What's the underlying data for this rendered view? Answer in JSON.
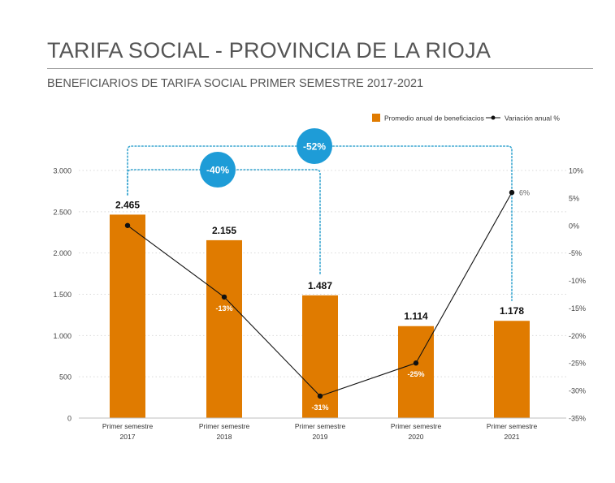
{
  "header": {
    "title": "TARIFA SOCIAL - PROVINCIA DE LA RIOJA",
    "subtitle": "BENEFICIARIOS DE TARIFA SOCIAL PRIMER SEMESTRE 2017-2021"
  },
  "colors": {
    "bar": "#E07B00",
    "line": "#111111",
    "bracket": "#3AA6D0",
    "badge": "#1E9CD7",
    "grid": "#d9d9d9",
    "text": "#555555"
  },
  "chart_data": {
    "type": "bar",
    "categories": [
      "Primer semestre 2017",
      "Primer semestre 2018",
      "Primer semestre 2019",
      "Primer semestre 2020",
      "Primer semestre 2021"
    ],
    "category_lines": [
      [
        "Primer semestre",
        "2017"
      ],
      [
        "Primer semestre",
        "2018"
      ],
      [
        "Primer semestre",
        "2019"
      ],
      [
        "Primer semestre",
        "2020"
      ],
      [
        "Primer semestre",
        "2021"
      ]
    ],
    "series": [
      {
        "name": "Promedio anual de beneficiacios",
        "type": "bar",
        "axis": "left",
        "values": [
          2465,
          2155,
          1487,
          1114,
          1178
        ],
        "labels": [
          "2.465",
          "2.155",
          "1.487",
          "1.114",
          "1.178"
        ]
      },
      {
        "name": "Variación anual %",
        "type": "line",
        "axis": "right",
        "values": [
          0,
          -13,
          -31,
          -25,
          6
        ],
        "labels": [
          "",
          "-13%",
          "-31%",
          "-25%",
          "6%"
        ]
      }
    ],
    "ylim_left": [
      0,
      3000
    ],
    "yticks_left": [
      0,
      500,
      1000,
      1500,
      2000,
      2500,
      3000
    ],
    "ytick_labels_left": [
      "0",
      "500",
      "1.000",
      "1.500",
      "2.000",
      "2.500",
      "3.000"
    ],
    "ylim_right": [
      -35,
      10
    ],
    "yticks_right": [
      -35,
      -30,
      -25,
      -20,
      -15,
      -10,
      -5,
      0,
      5,
      10
    ],
    "ytick_labels_right": [
      "-35%",
      "-30%",
      "-25%",
      "-20%",
      "-15%",
      "-10%",
      "-5%",
      "0%",
      "5%",
      "10%"
    ],
    "legend_position": "top-right",
    "grid": true,
    "annotations": [
      {
        "label": "-40%",
        "from_category": 0,
        "to_category": 2
      },
      {
        "label": "-52%",
        "from_category": 0,
        "to_category": 4
      }
    ]
  }
}
